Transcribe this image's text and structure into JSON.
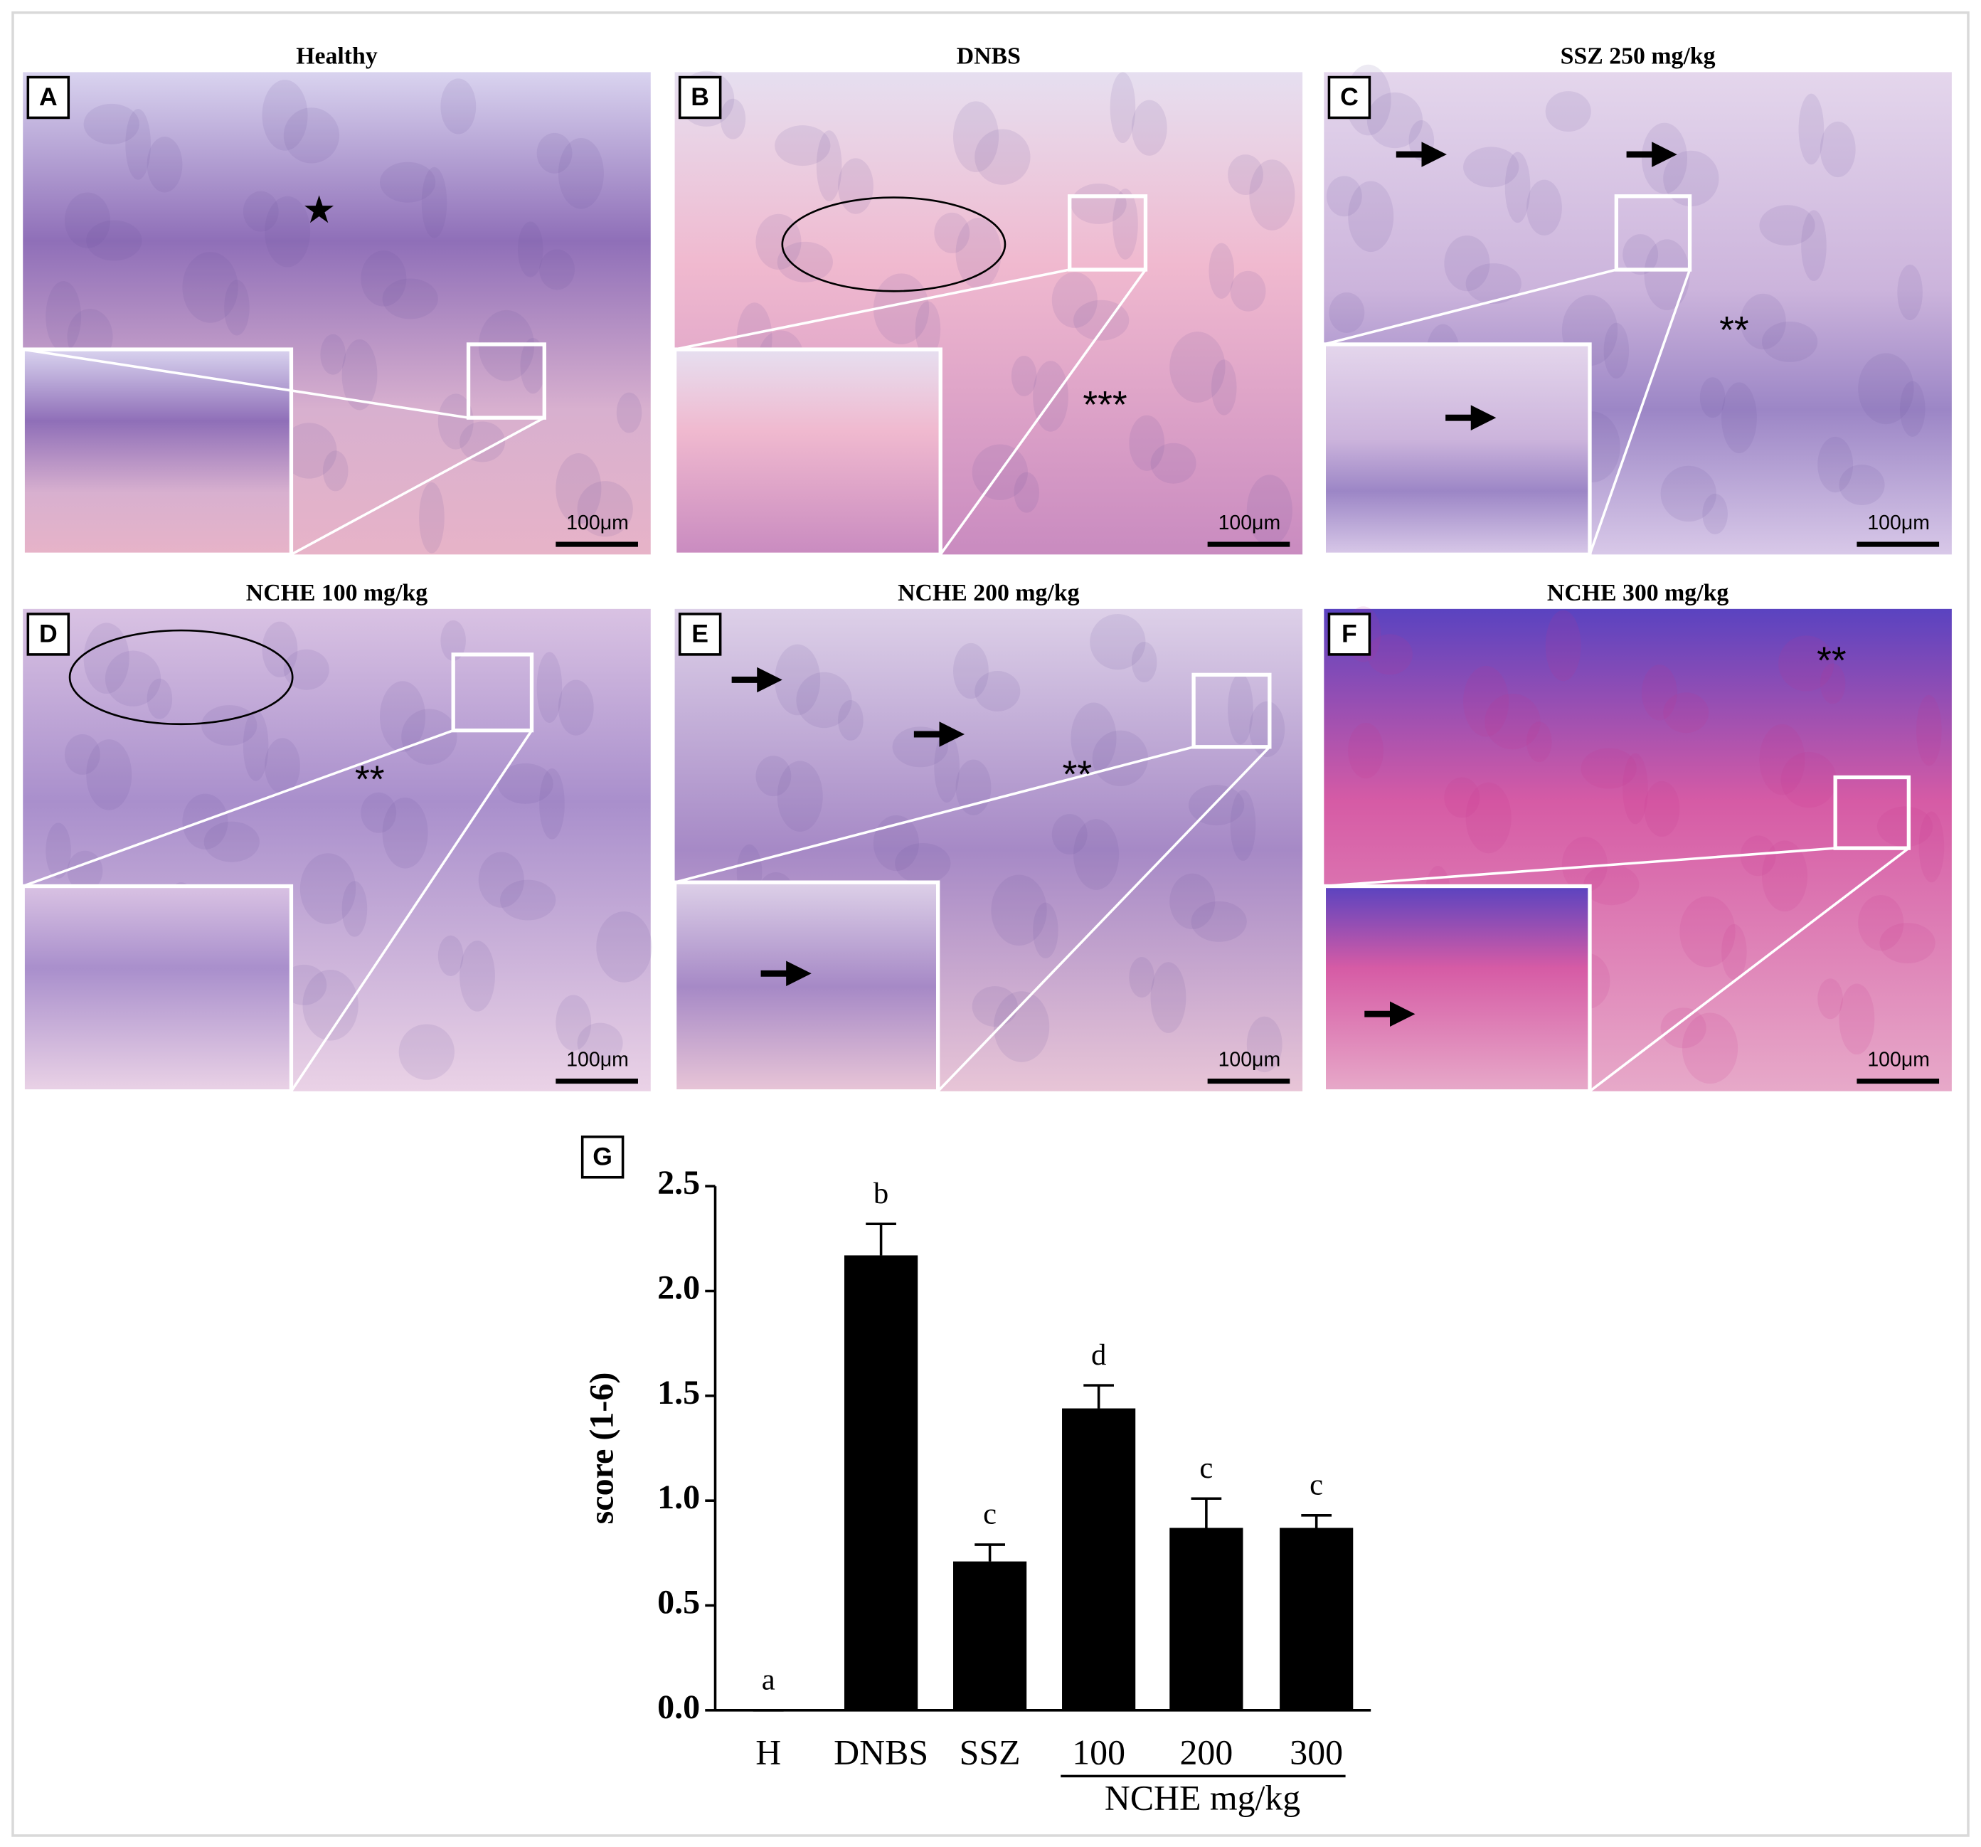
{
  "panels": [
    {
      "letter": "A",
      "title": "Healthy",
      "annotation": "★",
      "scale": "100μm"
    },
    {
      "letter": "B",
      "title": "DNBS",
      "annotation": "***",
      "scale": "100μm"
    },
    {
      "letter": "C",
      "title": "SSZ 250 mg/kg",
      "annotation": "**",
      "scale": "100μm"
    },
    {
      "letter": "D",
      "title": "NCHE 100 mg/kg",
      "annotation": "**",
      "scale": "100μm"
    },
    {
      "letter": "E",
      "title": "NCHE 200 mg/kg",
      "annotation": "**",
      "scale": "100μm"
    },
    {
      "letter": "F",
      "title": "NCHE 300 mg/kg",
      "annotation": "**",
      "scale": "100μm"
    }
  ],
  "chart_data": {
    "type": "bar",
    "panel": "G",
    "ylabel": "score (1-6)",
    "categories": [
      "H",
      "DNBS",
      "SSZ",
      "100",
      "200",
      "300"
    ],
    "group_label": "NCHE mg/kg",
    "values": [
      0,
      2.17,
      0.71,
      1.44,
      0.87,
      0.87
    ],
    "errors": [
      0,
      0.15,
      0.08,
      0.11,
      0.14,
      0.06
    ],
    "significance": [
      "a",
      "b",
      "c",
      "d",
      "c",
      "c"
    ],
    "color": "#000000",
    "ylim": [
      0,
      2.5
    ],
    "yticks": [
      {
        "value": 0,
        "label": "0.0"
      },
      {
        "value": 0.5,
        "label": "0.5"
      },
      {
        "value": 1,
        "label": "1.0"
      },
      {
        "value": 1.5,
        "label": "1.5"
      },
      {
        "value": 2,
        "label": "2.0"
      },
      {
        "value": 2.5,
        "label": "2.5"
      }
    ]
  }
}
